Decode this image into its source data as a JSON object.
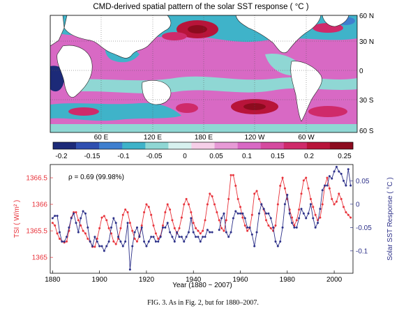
{
  "map": {
    "title": "CMD-derived spatial pattern of the solar SST response ( °C )",
    "lon_labels": [
      "60 E",
      "120 E",
      "180 E",
      "120 W",
      "60 W"
    ],
    "lat_labels": [
      "60 N",
      "30 N",
      "0",
      "30 S",
      "60 S"
    ],
    "colorbar": {
      "ticks": [
        "-0.2",
        "-0.15",
        "-0.1",
        "-0.05",
        "0",
        "0.05",
        "0.1",
        "0.15",
        "0.2",
        "0.25"
      ],
      "colors": [
        "#1c2a78",
        "#2f4fb0",
        "#3f7fcf",
        "#3fb3c9",
        "#8fd7d4",
        "#d7f1ee",
        "#f6cfe8",
        "#e79ad6",
        "#d869c4",
        "#d54a9f",
        "#cf2a6a",
        "#b8143a",
        "#8c0b1e"
      ]
    }
  },
  "chart_data": {
    "type": "line",
    "annotation": "ρ = 0.69  (99.98%)",
    "xlabel": "Year (1880 ~ 2007)",
    "ylabel_left": "TSI ( W/m² )",
    "ylabel_right": "Solar SST Response ( °C )",
    "xlim": [
      1879,
      2008
    ],
    "ylim_left": [
      1364.7,
      1366.75
    ],
    "ylim_right": [
      -0.148,
      0.085
    ],
    "x_ticks": [
      "1880",
      "1900",
      "1920",
      "1940",
      "1960",
      "1980",
      "2000"
    ],
    "y_ticks_left": [
      "1365",
      "1365.5",
      "1366",
      "1366.5"
    ],
    "y_ticks_right": [
      "0.05",
      "0",
      "-0.05",
      "-0.1"
    ],
    "grid": false,
    "series": [
      {
        "color": "#e8333b",
        "axis": "left",
        "x": [
          1880,
          1881,
          1882,
          1883,
          1884,
          1885,
          1886,
          1887,
          1888,
          1889,
          1890,
          1891,
          1892,
          1893,
          1894,
          1895,
          1896,
          1897,
          1898,
          1899,
          1900,
          1901,
          1902,
          1903,
          1904,
          1905,
          1906,
          1907,
          1908,
          1909,
          1910,
          1911,
          1912,
          1913,
          1914,
          1915,
          1916,
          1917,
          1918,
          1919,
          1920,
          1921,
          1922,
          1923,
          1924,
          1925,
          1926,
          1927,
          1928,
          1929,
          1930,
          1931,
          1932,
          1933,
          1934,
          1935,
          1936,
          1937,
          1938,
          1939,
          1940,
          1941,
          1942,
          1943,
          1944,
          1945,
          1946,
          1947,
          1948,
          1949,
          1950,
          1951,
          1952,
          1953,
          1954,
          1955,
          1956,
          1957,
          1958,
          1959,
          1960,
          1961,
          1962,
          1963,
          1964,
          1965,
          1966,
          1967,
          1968,
          1969,
          1970,
          1971,
          1972,
          1973,
          1974,
          1975,
          1976,
          1977,
          1978,
          1979,
          1980,
          1981,
          1982,
          1983,
          1984,
          1985,
          1986,
          1987,
          1988,
          1989,
          1990,
          1991,
          1992,
          1993,
          1994,
          1995,
          1996,
          1997,
          1998,
          1999,
          2000,
          2001,
          2002,
          2003,
          2004,
          2005,
          2006,
          2007
        ],
        "y": [
          1365.65,
          1365.6,
          1365.45,
          1365.35,
          1365.3,
          1365.28,
          1365.3,
          1365.5,
          1365.75,
          1365.85,
          1365.85,
          1365.7,
          1365.6,
          1365.5,
          1365.45,
          1365.35,
          1365.3,
          1365.2,
          1365.2,
          1365.35,
          1365.55,
          1365.75,
          1365.78,
          1365.7,
          1365.55,
          1365.45,
          1365.3,
          1365.25,
          1365.35,
          1365.55,
          1365.8,
          1365.9,
          1365.85,
          1365.65,
          1365.5,
          1365.35,
          1365.3,
          1365.4,
          1365.6,
          1365.85,
          1366.0,
          1365.95,
          1365.8,
          1365.6,
          1365.45,
          1365.35,
          1365.4,
          1365.6,
          1365.85,
          1366.0,
          1365.9,
          1365.7,
          1365.55,
          1365.45,
          1365.55,
          1365.75,
          1366.0,
          1366.1,
          1366.0,
          1365.85,
          1365.65,
          1365.55,
          1365.5,
          1365.45,
          1365.5,
          1365.7,
          1366.0,
          1366.2,
          1366.15,
          1366.0,
          1365.85,
          1365.7,
          1365.55,
          1365.5,
          1365.7,
          1366.1,
          1366.55,
          1366.55,
          1366.35,
          1366.1,
          1365.95,
          1365.75,
          1365.6,
          1365.5,
          1365.55,
          1365.8,
          1366.2,
          1366.25,
          1366.1,
          1366.0,
          1365.9,
          1365.7,
          1365.6,
          1365.55,
          1365.5,
          1365.6,
          1366.0,
          1366.35,
          1366.5,
          1366.3,
          1366.1,
          1365.9,
          1365.75,
          1365.6,
          1365.7,
          1365.9,
          1366.2,
          1366.45,
          1366.5,
          1366.3,
          1366.1,
          1365.95,
          1365.8,
          1365.7,
          1365.75,
          1366.0,
          1366.35,
          1366.5,
          1366.3,
          1366.1,
          1366.0,
          1366.05,
          1366.2,
          1366.1,
          1365.95,
          1365.85,
          1365.8,
          1365.75
        ]
      },
      {
        "color": "#2d3189",
        "axis": "right",
        "x": [
          1880,
          1881,
          1882,
          1883,
          1884,
          1885,
          1886,
          1887,
          1888,
          1889,
          1890,
          1891,
          1892,
          1893,
          1894,
          1895,
          1896,
          1897,
          1898,
          1899,
          1900,
          1901,
          1902,
          1903,
          1904,
          1905,
          1906,
          1907,
          1908,
          1909,
          1910,
          1911,
          1912,
          1913,
          1914,
          1915,
          1916,
          1917,
          1918,
          1919,
          1920,
          1921,
          1922,
          1923,
          1924,
          1925,
          1926,
          1927,
          1928,
          1929,
          1930,
          1931,
          1932,
          1933,
          1934,
          1935,
          1936,
          1937,
          1938,
          1939,
          1940,
          1941,
          1942,
          1943,
          1944,
          1945,
          1946,
          1947,
          1948,
          null,
          1951,
          1952,
          1953,
          1954,
          1955,
          1956,
          1957,
          1958,
          1959,
          1960,
          1961,
          1962,
          1963,
          1964,
          1965,
          1966,
          1967,
          1968,
          1969,
          1970,
          1971,
          1972,
          1973,
          1974,
          1975,
          1976,
          1977,
          1978,
          1979,
          1980,
          1981,
          1982,
          1983,
          1984,
          1985,
          1986,
          1987,
          1988,
          1989,
          1990,
          1991,
          1992,
          1993,
          1994,
          1995,
          1996,
          1997,
          1998,
          1999,
          2000,
          2001,
          2002,
          2003,
          2004,
          2005,
          2006,
          2007
        ],
        "y": [
          -0.03,
          -0.025,
          -0.025,
          -0.06,
          -0.08,
          -0.08,
          -0.07,
          -0.05,
          -0.03,
          -0.02,
          -0.04,
          -0.06,
          -0.03,
          -0.015,
          -0.02,
          -0.05,
          -0.08,
          -0.09,
          -0.07,
          -0.08,
          -0.09,
          -0.09,
          -0.1,
          -0.09,
          -0.08,
          -0.05,
          -0.03,
          -0.04,
          -0.07,
          -0.08,
          -0.09,
          -0.08,
          -0.04,
          -0.14,
          -0.09,
          -0.06,
          -0.05,
          -0.07,
          -0.05,
          -0.08,
          -0.09,
          -0.08,
          -0.07,
          -0.07,
          -0.08,
          -0.08,
          -0.07,
          -0.05,
          -0.05,
          -0.04,
          -0.06,
          -0.07,
          -0.08,
          -0.06,
          -0.07,
          -0.07,
          -0.08,
          -0.07,
          -0.06,
          -0.03,
          -0.06,
          -0.07,
          -0.07,
          -0.08,
          -0.07,
          -0.07,
          -0.055,
          -0.06,
          -0.06,
          null,
          -0.055,
          -0.03,
          -0.02,
          -0.06,
          -0.07,
          -0.06,
          -0.03,
          -0.015,
          -0.02,
          -0.02,
          -0.02,
          -0.03,
          -0.05,
          -0.05,
          -0.065,
          -0.09,
          -0.06,
          -0.02,
          0.0,
          -0.01,
          -0.02,
          -0.02,
          -0.03,
          -0.05,
          -0.08,
          -0.09,
          -0.08,
          -0.05,
          0.0,
          0.02,
          -0.02,
          -0.04,
          -0.05,
          -0.05,
          -0.03,
          -0.01,
          -0.02,
          -0.03,
          -0.02,
          0.0,
          -0.03,
          -0.05,
          -0.04,
          -0.01,
          0.03,
          0.04,
          0.04,
          0.06,
          0.055,
          0.07,
          0.08,
          0.07,
          0.065,
          0.05,
          0.04,
          0.075,
          0.04
        ]
      }
    ]
  },
  "caption": "FIG. 3. As in Fig. 2, but for 1880–2007."
}
